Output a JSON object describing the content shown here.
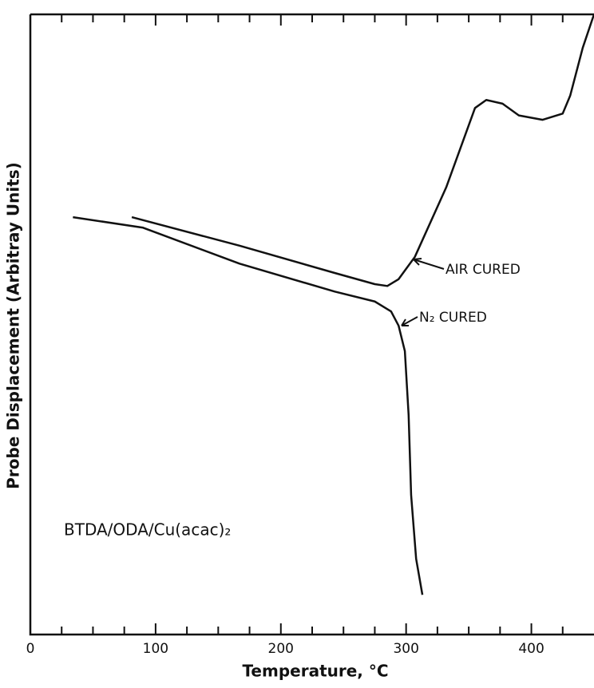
{
  "chart_data": {
    "type": "line",
    "x_label": "Temperature, °C",
    "y_label": "Probe Displacement (Arbitray Units)",
    "annotations": [
      "AIR CURED",
      "N₂ CURED",
      "BTDA/ODA/Cu(acac)₂"
    ],
    "xlim": [
      0,
      450
    ],
    "ylim": [
      0,
      100
    ],
    "xticks": [
      0,
      100,
      200,
      300,
      400
    ],
    "xminorticks": [
      25,
      50,
      75,
      125,
      150,
      175,
      225,
      250,
      275,
      325,
      350,
      375,
      425
    ],
    "series": [
      {
        "name": "AIR CURED",
        "color": "#111111",
        "x": [
          81,
          167,
          243,
          275,
          285,
          294,
          307,
          332,
          355,
          364,
          377,
          390,
          409,
          425,
          431,
          441,
          450
        ],
        "values": [
          67.3,
          62.7,
          58.3,
          56.5,
          56.2,
          57.3,
          60.9,
          72.1,
          84.9,
          86.2,
          85.6,
          83.7,
          83.0,
          84.0,
          86.9,
          94.6,
          100
        ]
      },
      {
        "name": "N₂ CURED",
        "color": "#111111",
        "x": [
          34,
          90,
          167,
          243,
          275,
          288,
          294,
          299,
          302,
          304,
          308,
          313
        ],
        "values": [
          67.3,
          65.6,
          59.8,
          55.3,
          53.7,
          52.1,
          49.8,
          45.7,
          35.4,
          22.5,
          12.2,
          6.4
        ]
      }
    ]
  }
}
